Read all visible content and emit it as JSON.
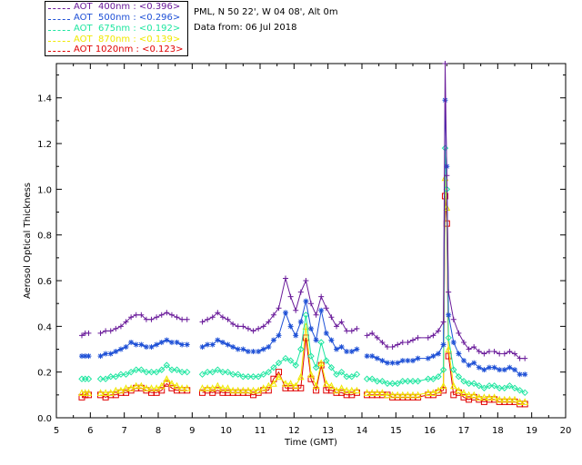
{
  "info": {
    "station": "PML, N 50 22', W 04 08', Alt 0m",
    "date_line": "Data from: 06 Jul 2018"
  },
  "legend": [
    {
      "label": "AOT  400nm : <0.396>",
      "color": "#6a1b9a"
    },
    {
      "label": "AOT  500nm : <0.296>",
      "color": "#1e50d6"
    },
    {
      "label": "AOT  675nm : <0.192>",
      "color": "#1ee6a0"
    },
    {
      "label": "AOT  870nm : <0.139>",
      "color": "#f0e800"
    },
    {
      "label": "AOT 1020nm : <0.123>",
      "color": "#e00000"
    }
  ],
  "chart_data": {
    "type": "line",
    "xlabel": "Time (GMT)",
    "ylabel": "Aerosol Optical Thickness",
    "xlim": [
      5,
      20
    ],
    "ylim": [
      0,
      1.55
    ],
    "x_ticks": [
      "5",
      "6",
      "7",
      "8",
      "9",
      "10",
      "11",
      "12",
      "13",
      "14",
      "15",
      "16",
      "17",
      "18",
      "19",
      "20"
    ],
    "y_ticks": [
      "0.0",
      "0.2",
      "0.4",
      "0.6",
      "0.8",
      "1.0",
      "1.2",
      "1.4"
    ],
    "x": [
      5.75,
      5.85,
      5.95,
      6.3,
      6.45,
      6.6,
      6.75,
      6.9,
      7.05,
      7.2,
      7.35,
      7.5,
      7.65,
      7.8,
      7.95,
      8.1,
      8.25,
      8.4,
      8.55,
      8.7,
      8.85,
      9.3,
      9.45,
      9.6,
      9.75,
      9.9,
      10.05,
      10.2,
      10.35,
      10.5,
      10.65,
      10.8,
      10.95,
      11.1,
      11.25,
      11.4,
      11.55,
      11.75,
      11.9,
      12.05,
      12.2,
      12.35,
      12.5,
      12.65,
      12.8,
      12.95,
      13.1,
      13.25,
      13.4,
      13.55,
      13.7,
      13.85,
      14.15,
      14.3,
      14.45,
      14.6,
      14.75,
      14.9,
      15.05,
      15.2,
      15.35,
      15.5,
      15.65,
      15.95,
      16.1,
      16.25,
      16.4,
      16.45,
      16.5,
      16.55,
      16.7,
      16.85,
      17.0,
      17.15,
      17.3,
      17.45,
      17.6,
      17.75,
      17.9,
      18.05,
      18.2,
      18.35,
      18.5,
      18.65,
      18.8
    ],
    "series": [
      {
        "name": "AOT  400nm : <0.396>",
        "values": [
          0.36,
          0.37,
          0.37,
          0.37,
          0.38,
          0.38,
          0.39,
          0.4,
          0.42,
          0.44,
          0.45,
          0.45,
          0.43,
          0.43,
          0.44,
          0.45,
          0.46,
          0.45,
          0.44,
          0.43,
          0.43,
          0.42,
          0.43,
          0.44,
          0.46,
          0.44,
          0.43,
          0.41,
          0.4,
          0.4,
          0.39,
          0.38,
          0.39,
          0.4,
          0.42,
          0.45,
          0.48,
          0.61,
          0.53,
          0.47,
          0.55,
          0.6,
          0.5,
          0.45,
          0.53,
          0.48,
          0.44,
          0.4,
          0.42,
          0.38,
          0.38,
          0.39,
          0.36,
          0.37,
          0.35,
          0.33,
          0.31,
          0.31,
          0.32,
          0.33,
          0.33,
          0.34,
          0.35,
          0.35,
          0.36,
          0.38,
          0.42,
          1.57,
          1.06,
          0.55,
          0.43,
          0.37,
          0.33,
          0.3,
          0.31,
          0.29,
          0.28,
          0.29,
          0.29,
          0.28,
          0.28,
          0.29,
          0.28,
          0.26,
          0.26
        ]
      },
      {
        "name": "AOT  500nm : <0.296>",
        "values": [
          0.27,
          0.27,
          0.27,
          0.27,
          0.28,
          0.28,
          0.29,
          0.3,
          0.31,
          0.33,
          0.32,
          0.32,
          0.31,
          0.31,
          0.32,
          0.33,
          0.34,
          0.33,
          0.33,
          0.32,
          0.32,
          0.31,
          0.32,
          0.32,
          0.34,
          0.33,
          0.32,
          0.31,
          0.3,
          0.3,
          0.29,
          0.29,
          0.29,
          0.3,
          0.31,
          0.34,
          0.36,
          0.46,
          0.4,
          0.36,
          0.42,
          0.51,
          0.39,
          0.34,
          0.47,
          0.37,
          0.34,
          0.3,
          0.31,
          0.29,
          0.29,
          0.3,
          0.27,
          0.27,
          0.26,
          0.25,
          0.24,
          0.24,
          0.24,
          0.25,
          0.25,
          0.25,
          0.26,
          0.26,
          0.27,
          0.28,
          0.32,
          1.39,
          1.1,
          0.45,
          0.33,
          0.28,
          0.25,
          0.23,
          0.24,
          0.22,
          0.21,
          0.22,
          0.22,
          0.21,
          0.21,
          0.22,
          0.21,
          0.19,
          0.19
        ]
      },
      {
        "name": "AOT  675nm : <0.192>",
        "values": [
          0.17,
          0.17,
          0.17,
          0.17,
          0.17,
          0.18,
          0.18,
          0.19,
          0.19,
          0.2,
          0.21,
          0.21,
          0.2,
          0.2,
          0.2,
          0.21,
          0.23,
          0.21,
          0.21,
          0.2,
          0.2,
          0.19,
          0.2,
          0.2,
          0.21,
          0.2,
          0.2,
          0.19,
          0.19,
          0.18,
          0.18,
          0.18,
          0.18,
          0.19,
          0.2,
          0.22,
          0.24,
          0.26,
          0.25,
          0.23,
          0.3,
          0.45,
          0.27,
          0.22,
          0.33,
          0.25,
          0.22,
          0.19,
          0.2,
          0.18,
          0.18,
          0.19,
          0.17,
          0.17,
          0.16,
          0.16,
          0.15,
          0.15,
          0.15,
          0.16,
          0.16,
          0.16,
          0.16,
          0.17,
          0.17,
          0.18,
          0.21,
          1.18,
          1.0,
          0.35,
          0.21,
          0.18,
          0.16,
          0.15,
          0.15,
          0.14,
          0.13,
          0.14,
          0.14,
          0.13,
          0.13,
          0.14,
          0.13,
          0.12,
          0.11
        ]
      },
      {
        "name": "AOT  870nm : <0.139>",
        "values": [
          0.11,
          0.11,
          0.11,
          0.11,
          0.11,
          0.11,
          0.12,
          0.12,
          0.13,
          0.13,
          0.14,
          0.14,
          0.13,
          0.13,
          0.13,
          0.14,
          0.17,
          0.15,
          0.14,
          0.13,
          0.13,
          0.13,
          0.13,
          0.13,
          0.14,
          0.13,
          0.13,
          0.12,
          0.12,
          0.12,
          0.12,
          0.12,
          0.12,
          0.13,
          0.14,
          0.15,
          0.18,
          0.15,
          0.15,
          0.14,
          0.18,
          0.4,
          0.19,
          0.14,
          0.24,
          0.15,
          0.14,
          0.12,
          0.13,
          0.12,
          0.12,
          0.12,
          0.11,
          0.11,
          0.11,
          0.11,
          0.1,
          0.1,
          0.1,
          0.1,
          0.1,
          0.1,
          0.1,
          0.11,
          0.11,
          0.12,
          0.14,
          1.05,
          0.92,
          0.3,
          0.14,
          0.12,
          0.11,
          0.1,
          0.1,
          0.09,
          0.09,
          0.09,
          0.09,
          0.08,
          0.08,
          0.08,
          0.08,
          0.07,
          0.07
        ]
      },
      {
        "name": "AOT 1020nm : <0.123>",
        "values": [
          0.09,
          0.1,
          0.1,
          0.1,
          0.09,
          0.1,
          0.1,
          0.11,
          0.11,
          0.12,
          0.13,
          0.13,
          0.12,
          0.11,
          0.11,
          0.12,
          0.15,
          0.13,
          0.12,
          0.12,
          0.12,
          0.11,
          0.12,
          0.11,
          0.12,
          0.11,
          0.11,
          0.11,
          0.11,
          0.11,
          0.11,
          0.1,
          0.11,
          0.12,
          0.12,
          0.17,
          0.2,
          0.13,
          0.13,
          0.13,
          0.13,
          0.35,
          0.17,
          0.12,
          0.23,
          0.12,
          0.12,
          0.11,
          0.11,
          0.1,
          0.1,
          0.11,
          0.1,
          0.1,
          0.1,
          0.1,
          0.1,
          0.09,
          0.09,
          0.09,
          0.09,
          0.09,
          0.09,
          0.1,
          0.1,
          0.11,
          0.12,
          0.97,
          0.85,
          0.27,
          0.1,
          0.11,
          0.09,
          0.08,
          0.09,
          0.08,
          0.07,
          0.08,
          0.08,
          0.07,
          0.07,
          0.07,
          0.07,
          0.06,
          0.06
        ]
      }
    ]
  }
}
